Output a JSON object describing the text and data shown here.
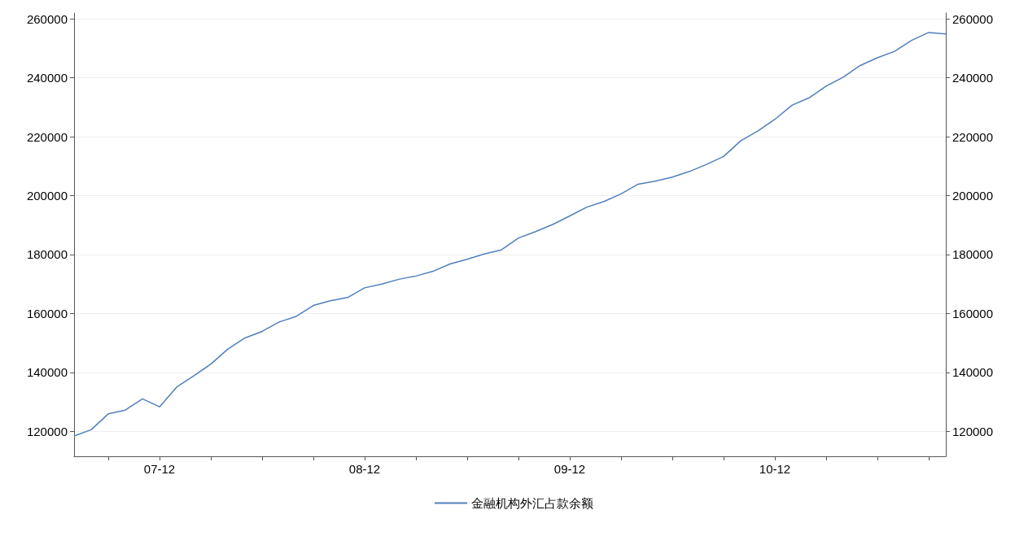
{
  "chart_data": {
    "type": "line",
    "categories": [
      null,
      null,
      null,
      null,
      null,
      "07-12",
      null,
      null,
      null,
      null,
      null,
      null,
      null,
      null,
      null,
      null,
      null,
      "08-12",
      null,
      null,
      null,
      null,
      null,
      null,
      null,
      null,
      null,
      null,
      null,
      "09-12",
      null,
      null,
      null,
      null,
      null,
      null,
      null,
      null,
      null,
      null,
      null,
      "10-12",
      null,
      null,
      null,
      null,
      null,
      null,
      null,
      null,
      null,
      null
    ],
    "series": [
      {
        "name": "金融机构外汇占款余额",
        "color": "#4f81bd",
        "values": [
          118400,
          120500,
          125900,
          127200,
          131000,
          128300,
          135000,
          138800,
          142800,
          147900,
          151700,
          153900,
          157100,
          159000,
          162700,
          164300,
          165400,
          168700,
          170000,
          171600,
          172700,
          174300,
          176800,
          178400,
          180200,
          181600,
          185600,
          187800,
          190200,
          193100,
          196100,
          198000,
          200600,
          203900,
          204900,
          206300,
          208200,
          210600,
          213300,
          218600,
          221900,
          225900,
          230700,
          233200,
          237200,
          240200,
          244200,
          246800,
          249000,
          252700,
          255400,
          254900
        ]
      }
    ],
    "ylim": [
      111500,
      262000
    ],
    "yticks": [
      120000,
      140000,
      160000,
      180000,
      200000,
      220000,
      240000,
      260000
    ],
    "y2lim": [
      111500,
      262000
    ],
    "y2ticks": [
      120000,
      140000,
      160000,
      180000,
      200000,
      220000,
      240000,
      260000
    ],
    "grid": "y",
    "legend": "bottom",
    "marker": "none",
    "line_style": "solid"
  }
}
